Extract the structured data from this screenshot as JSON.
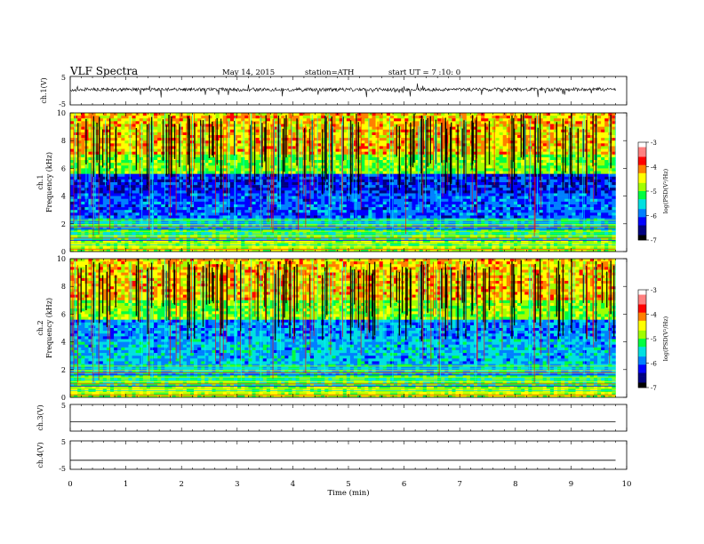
{
  "header": {
    "title": "VLF  Spectra",
    "date": "May 14, 2015",
    "station": "station=ATH",
    "start": "start  UT  =   7 :10: 0"
  },
  "chart_data": [
    {
      "type": "line",
      "panel": "ch1-waveform",
      "ylabel": "ch.1(V)",
      "ylim": [
        -5,
        5
      ],
      "yticks": [
        "5",
        "-5"
      ],
      "xlim": [
        0,
        10
      ],
      "trace_end_min": 9.8,
      "baseline_v": 0.4,
      "x": [
        0,
        1,
        2,
        3,
        4,
        5,
        6,
        7,
        8,
        9,
        9.8
      ],
      "y": [
        0.4,
        0.3,
        0.4,
        0.5,
        0.3,
        0.4,
        0.3,
        0.4,
        0.4,
        0.3,
        0.4
      ]
    },
    {
      "type": "heatmap",
      "panel": "ch1-spectrogram",
      "channel_label": "ch.1",
      "ylabel": "Frequency  (kHz)",
      "ylim": [
        0,
        10
      ],
      "yticks": [
        "0",
        "2",
        "4",
        "6",
        "8",
        "10"
      ],
      "xlim": [
        0,
        10
      ],
      "data_end_min": 9.8,
      "colorbar": {
        "label": "log(PSD(V²/Hz)",
        "range": [
          -7,
          -3
        ],
        "ticks": [
          "-3",
          "-4",
          "-5",
          "-6",
          "-7"
        ]
      }
    },
    {
      "type": "heatmap",
      "panel": "ch2-spectrogram",
      "channel_label": "ch.2",
      "ylabel": "Frequency  (kHz)",
      "ylim": [
        0,
        10
      ],
      "yticks": [
        "0",
        "2",
        "4",
        "6",
        "8",
        "10"
      ],
      "xlim": [
        0,
        10
      ],
      "data_end_min": 9.8,
      "colorbar": {
        "label": "log(PSD(V²/Hz)",
        "range": [
          -7,
          -3
        ],
        "ticks": [
          "-3",
          "-4",
          "-5",
          "-6",
          "-7"
        ]
      }
    },
    {
      "type": "line",
      "panel": "ch3-waveform",
      "ylabel": "ch.3(V)",
      "ylim": [
        -5,
        5
      ],
      "yticks": [
        "5"
      ],
      "xlim": [
        0,
        10
      ],
      "x": [
        0,
        9.8
      ],
      "y": [
        -1.5,
        -1.5
      ]
    },
    {
      "type": "line",
      "panel": "ch4-waveform",
      "ylabel": "ch.4(V)",
      "ylim": [
        -5,
        5
      ],
      "yticks": [
        "5",
        "-5"
      ],
      "xlim": [
        0,
        10
      ],
      "x": [
        0,
        9.8
      ],
      "y": [
        -1.8,
        -1.8
      ]
    }
  ],
  "xaxis": {
    "label": "Time  (min)",
    "ticks": [
      "0",
      "1",
      "2",
      "3",
      "4",
      "5",
      "6",
      "7",
      "8",
      "9",
      "10"
    ]
  },
  "colorscale": [
    "#000000",
    "#00007f",
    "#0000ff",
    "#0080ff",
    "#00e0e0",
    "#00ff40",
    "#a0ff00",
    "#ffff00",
    "#ff8000",
    "#ff0000",
    "#ff8080",
    "#ffffff"
  ]
}
